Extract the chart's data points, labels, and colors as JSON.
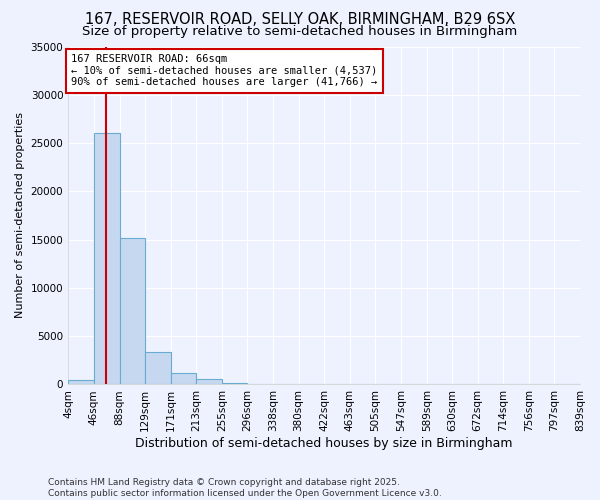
{
  "title": "167, RESERVOIR ROAD, SELLY OAK, BIRMINGHAM, B29 6SX",
  "subtitle": "Size of property relative to semi-detached houses in Birmingham",
  "xlabel": "Distribution of semi-detached houses by size in Birmingham",
  "ylabel": "Number of semi-detached properties",
  "bar_edges": [
    4,
    46,
    88,
    129,
    171,
    213,
    255,
    296,
    338,
    380,
    422,
    463,
    505,
    547,
    589,
    630,
    672,
    714,
    756,
    797,
    839
  ],
  "bar_heights": [
    500,
    26000,
    15200,
    3400,
    1200,
    600,
    150,
    0,
    0,
    0,
    0,
    0,
    0,
    0,
    0,
    0,
    0,
    0,
    0,
    0
  ],
  "bar_color": "#c5d8f0",
  "bar_edgecolor": "#6aabd2",
  "property_size": 66,
  "red_line_color": "#cc0000",
  "annotation_text": "167 RESERVOIR ROAD: 66sqm\n← 10% of semi-detached houses are smaller (4,537)\n90% of semi-detached houses are larger (41,766) →",
  "annotation_box_color": "#ffffff",
  "annotation_box_edgecolor": "#cc0000",
  "ylim": [
    0,
    35000
  ],
  "yticks": [
    0,
    5000,
    10000,
    15000,
    20000,
    25000,
    30000,
    35000
  ],
  "background_color": "#eef2ff",
  "plot_bg_color": "#eef2ff",
  "grid_color": "#ffffff",
  "footer": "Contains HM Land Registry data © Crown copyright and database right 2025.\nContains public sector information licensed under the Open Government Licence v3.0.",
  "title_fontsize": 10.5,
  "subtitle_fontsize": 9.5,
  "xlabel_fontsize": 9,
  "ylabel_fontsize": 8,
  "tick_fontsize": 7.5,
  "annotation_fontsize": 7.5,
  "footer_fontsize": 6.5
}
